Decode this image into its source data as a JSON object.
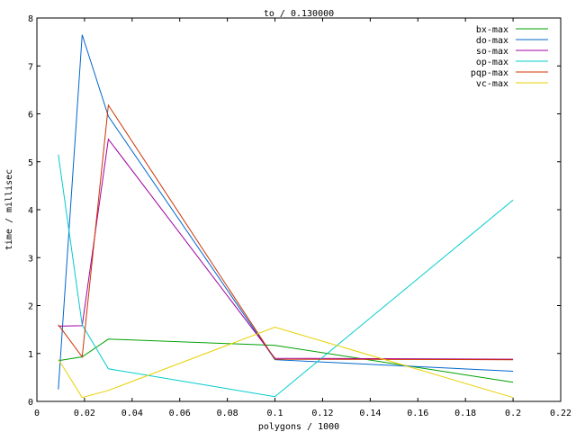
{
  "chart_data": {
    "type": "line",
    "title": "to / 0.130000",
    "xlabel": "polygons / 1000",
    "ylabel": "time / millisec",
    "xlim": [
      0,
      0.22
    ],
    "ylim": [
      0,
      8
    ],
    "xticks": [
      0,
      0.02,
      0.04,
      0.06,
      0.08,
      0.1,
      0.12,
      0.14,
      0.16,
      0.18,
      0.2,
      0.22
    ],
    "xtick_labels": [
      "0",
      "0.02",
      "0.04",
      "0.06",
      "0.08",
      "0.1",
      "0.12",
      "0.14",
      "0.16",
      "0.18",
      "0.2",
      "0.22"
    ],
    "yticks": [
      0,
      1,
      2,
      3,
      4,
      5,
      6,
      7,
      8
    ],
    "ytick_labels": [
      "0",
      "1",
      "2",
      "3",
      "4",
      "5",
      "6",
      "7",
      "8"
    ],
    "grid": false,
    "legend_position": "top-right",
    "series": [
      {
        "name": "bx-max",
        "color": "#00a000",
        "x": [
          0.009,
          0.019,
          0.03,
          0.1,
          0.2
        ],
        "y": [
          0.85,
          0.93,
          1.3,
          1.17,
          0.4
        ]
      },
      {
        "name": "do-max",
        "color": "#0066cc",
        "x": [
          0.009,
          0.019,
          0.03,
          0.1,
          0.2
        ],
        "y": [
          0.25,
          7.65,
          5.95,
          0.87,
          0.63
        ]
      },
      {
        "name": "so-max",
        "color": "#a000a0",
        "x": [
          0.009,
          0.019,
          0.03,
          0.1,
          0.2
        ],
        "y": [
          1.57,
          1.58,
          5.47,
          0.9,
          0.88
        ]
      },
      {
        "name": "op-max",
        "color": "#00cccc",
        "x": [
          0.009,
          0.019,
          0.03,
          0.1,
          0.2
        ],
        "y": [
          5.15,
          1.6,
          0.68,
          0.1,
          4.2
        ]
      },
      {
        "name": "pqp-max",
        "color": "#cc3300",
        "x": [
          0.009,
          0.019,
          0.03,
          0.1,
          0.2
        ],
        "y": [
          1.6,
          0.93,
          6.18,
          0.88,
          0.87
        ]
      },
      {
        "name": "vc-max",
        "color": "#e8d000",
        "x": [
          0.009,
          0.019,
          0.03,
          0.1,
          0.2
        ],
        "y": [
          0.88,
          0.08,
          0.23,
          1.55,
          0.08
        ]
      }
    ]
  }
}
